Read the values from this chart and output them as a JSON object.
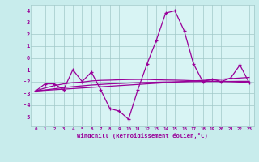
{
  "xlabel": "Windchill (Refroidissement éolien,°C)",
  "x": [
    0,
    1,
    2,
    3,
    4,
    5,
    6,
    7,
    8,
    9,
    10,
    11,
    12,
    13,
    14,
    15,
    16,
    17,
    18,
    19,
    20,
    21,
    22,
    23
  ],
  "y_main": [
    -2.8,
    -2.2,
    -2.2,
    -2.7,
    -1.0,
    -2.0,
    -1.2,
    -2.7,
    -4.3,
    -4.5,
    -5.2,
    -2.7,
    -0.5,
    1.5,
    3.8,
    4.0,
    2.3,
    -0.5,
    -2.0,
    -1.8,
    -2.0,
    -1.7,
    -0.6,
    -2.1
  ],
  "y_reg1": [
    -2.8,
    -2.55,
    -2.35,
    -2.2,
    -2.1,
    -2.05,
    -1.95,
    -1.9,
    -1.88,
    -1.85,
    -1.83,
    -1.82,
    -1.82,
    -1.85,
    -1.87,
    -1.88,
    -1.9,
    -1.93,
    -1.95,
    -1.97,
    -2.0,
    -2.02,
    -2.05,
    -2.08
  ],
  "y_reg2": [
    -2.8,
    -2.72,
    -2.62,
    -2.52,
    -2.44,
    -2.37,
    -2.3,
    -2.25,
    -2.2,
    -2.17,
    -2.13,
    -2.1,
    -2.08,
    -2.06,
    -2.04,
    -2.03,
    -2.02,
    -2.01,
    -2.0,
    -2.0,
    -1.99,
    -1.99,
    -1.98,
    -1.98
  ],
  "y_reg3": [
    -2.8,
    -2.75,
    -2.7,
    -2.65,
    -2.6,
    -2.55,
    -2.5,
    -2.45,
    -2.4,
    -2.35,
    -2.3,
    -2.25,
    -2.2,
    -2.15,
    -2.1,
    -2.05,
    -2.0,
    -1.95,
    -1.9,
    -1.85,
    -1.8,
    -1.75,
    -1.7,
    -1.65
  ],
  "line_color": "#990099",
  "bg_color": "#c8ecec",
  "plot_bg": "#d8f4f4",
  "grid_color": "#a0c8c8",
  "ylim": [
    -5.8,
    4.5
  ],
  "yticks": [
    -5,
    -4,
    -3,
    -2,
    -1,
    0,
    1,
    2,
    3,
    4
  ],
  "xlim": [
    -0.5,
    23.5
  ]
}
